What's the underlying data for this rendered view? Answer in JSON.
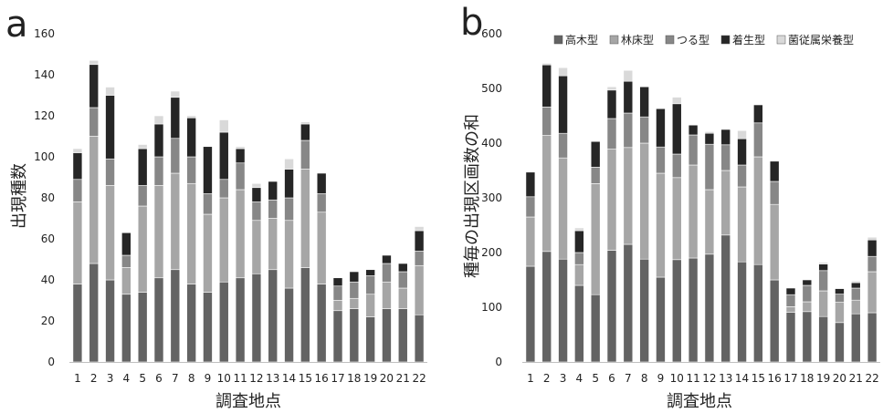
{
  "colors": {
    "高木型": "#636363",
    "林床型": "#a6a6a6",
    "つる型": "#878787",
    "着生型": "#262626",
    "菌従属栄養型": "#d9d9d9"
  },
  "chart_data": [
    {
      "panel": "a",
      "type": "bar",
      "stacked": true,
      "xlabel": "調査地点",
      "ylabel": "出現種数",
      "ylim": [
        0,
        160
      ],
      "yticks": [
        0,
        20,
        40,
        60,
        80,
        100,
        120,
        140,
        160
      ],
      "categories": [
        "1",
        "2",
        "3",
        "4",
        "5",
        "6",
        "7",
        "8",
        "9",
        "10",
        "11",
        "12",
        "13",
        "14",
        "15",
        "16",
        "17",
        "18",
        "19",
        "20",
        "21",
        "22"
      ],
      "series": [
        {
          "name": "高木型",
          "values": [
            38,
            48,
            40,
            33,
            34,
            41,
            45,
            38,
            34,
            39,
            41,
            43,
            45,
            36,
            46,
            38,
            25,
            26,
            22,
            26,
            26,
            23
          ]
        },
        {
          "name": "林床型",
          "values": [
            40,
            62,
            46,
            13,
            42,
            45,
            47,
            49,
            38,
            41,
            43,
            26,
            25,
            33,
            48,
            35,
            5,
            5,
            11,
            13,
            10,
            24
          ]
        },
        {
          "name": "つる型",
          "values": [
            11,
            14,
            13,
            6,
            10,
            14,
            17,
            13,
            10,
            9,
            13,
            9,
            9,
            11,
            14,
            9,
            7,
            8,
            9,
            9,
            8,
            7
          ]
        },
        {
          "name": "着生型",
          "values": [
            13,
            21,
            31,
            11,
            18,
            16,
            20,
            19,
            23,
            23,
            7,
            7,
            9,
            14,
            8,
            10,
            4,
            5,
            3,
            4,
            4,
            10
          ]
        },
        {
          "name": "菌従属栄養型",
          "values": [
            2,
            2,
            4,
            0,
            2,
            4,
            3,
            1,
            0,
            6,
            1,
            2,
            0,
            5,
            1,
            0,
            0,
            0,
            0,
            0,
            0,
            2
          ]
        }
      ]
    },
    {
      "panel": "b",
      "type": "bar",
      "stacked": true,
      "xlabel": "調査地点",
      "ylabel": "種毎の出現区画数の和",
      "ylim": [
        0,
        600
      ],
      "yticks": [
        0,
        100,
        200,
        300,
        400,
        500,
        600
      ],
      "legend_position": "top",
      "categories": [
        "1",
        "2",
        "3",
        "4",
        "5",
        "6",
        "7",
        "8",
        "9",
        "10",
        "11",
        "12",
        "13",
        "14",
        "15",
        "16",
        "17",
        "18",
        "19",
        "20",
        "21",
        "22"
      ],
      "series": [
        {
          "name": "高木型",
          "values": [
            175,
            202,
            188,
            140,
            123,
            204,
            215,
            188,
            155,
            187,
            190,
            197,
            232,
            183,
            178,
            150,
            91,
            92,
            83,
            72,
            88,
            90
          ]
        },
        {
          "name": "林床型",
          "values": [
            90,
            212,
            185,
            38,
            203,
            185,
            177,
            212,
            190,
            150,
            170,
            118,
            118,
            137,
            197,
            138,
            10,
            18,
            47,
            37,
            25,
            75
          ]
        },
        {
          "name": "つる型",
          "values": [
            37,
            52,
            45,
            22,
            30,
            56,
            63,
            48,
            48,
            43,
            55,
            83,
            47,
            40,
            62,
            42,
            22,
            30,
            37,
            15,
            22,
            28
          ]
        },
        {
          "name": "着生型",
          "values": [
            45,
            77,
            105,
            40,
            47,
            52,
            58,
            55,
            70,
            92,
            18,
            20,
            28,
            48,
            33,
            37,
            12,
            10,
            12,
            10,
            10,
            30
          ]
        },
        {
          "name": "菌従属栄養型",
          "values": [
            0,
            3,
            15,
            5,
            0,
            6,
            20,
            0,
            0,
            12,
            0,
            3,
            0,
            15,
            0,
            0,
            0,
            0,
            3,
            0,
            3,
            5
          ]
        }
      ]
    }
  ]
}
